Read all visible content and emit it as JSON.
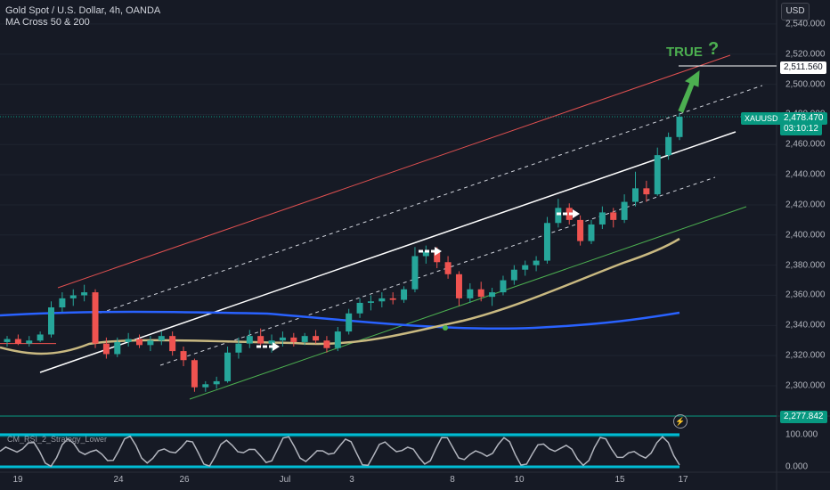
{
  "header": {
    "title": "Gold Spot / U.S. Dollar, 4h, OANDA",
    "indicator": "MA Cross 50 & 200",
    "currency_button": "USD"
  },
  "annotation": {
    "text": "TRUE",
    "mark": "?",
    "color": "#4caf50"
  },
  "price_axis": {
    "labels": [
      "2,540.000",
      "2,520.000",
      "2,500.000",
      "2,480.000",
      "2,460.000",
      "2,440.000",
      "2,420.000",
      "2,400.000",
      "2,380.000",
      "2,360.000",
      "2,340.000",
      "2,320.000",
      "2,300.000"
    ],
    "target_tag": "2,511.560",
    "symbol_tag": "XAUUSD",
    "last_price_tag": "2,478.470",
    "countdown_tag": "03:10:12",
    "low_tag": "2,277.842",
    "osc_labels": [
      "100.000",
      "0.000"
    ]
  },
  "oscillator": {
    "label": "CM_RSI_2_Strategy_Lower"
  },
  "alert_icon": "lightning-icon",
  "date_axis": [
    "19",
    "24",
    "26",
    "Jul",
    "3",
    "8",
    "10",
    "15",
    "17"
  ],
  "colors": {
    "bg": "#161a25",
    "up": "#26a69a",
    "down": "#ef5350",
    "ma50": "#c9b981",
    "ma200": "#2962ff",
    "tag_green": "#089981",
    "annotation": "#4caf50",
    "osc_line": "#b2b5be",
    "osc_band": "#00bcd4"
  },
  "chart_data": {
    "type": "candlestick",
    "series_name": "XAUUSD",
    "y_range": [
      2285,
      2545
    ],
    "last_price": 2478.47,
    "target_price": 2511.56,
    "low_marker": 2277.842,
    "ma_labels": [
      "MA Cross 50 & 200"
    ],
    "candles": [
      {
        "c": "19",
        "o": 2329,
        "h": 2333,
        "l": 2326,
        "cl": 2331
      },
      {
        "c": "19",
        "o": 2331,
        "h": 2334,
        "l": 2327,
        "cl": 2328
      },
      {
        "c": "19",
        "o": 2328,
        "h": 2333,
        "l": 2326,
        "cl": 2330
      },
      {
        "c": "20",
        "o": 2330,
        "h": 2336,
        "l": 2329,
        "cl": 2334
      },
      {
        "c": "20",
        "o": 2334,
        "h": 2356,
        "l": 2332,
        "cl": 2352
      },
      {
        "c": "20",
        "o": 2352,
        "h": 2362,
        "l": 2349,
        "cl": 2358
      },
      {
        "c": "21",
        "o": 2358,
        "h": 2364,
        "l": 2353,
        "cl": 2360
      },
      {
        "c": "21",
        "o": 2360,
        "h": 2367,
        "l": 2356,
        "cl": 2362
      },
      {
        "c": "21",
        "o": 2362,
        "h": 2364,
        "l": 2325,
        "cl": 2328
      },
      {
        "c": "24",
        "o": 2328,
        "h": 2332,
        "l": 2318,
        "cl": 2321
      },
      {
        "c": "24",
        "o": 2321,
        "h": 2332,
        "l": 2319,
        "cl": 2329
      },
      {
        "c": "24",
        "o": 2329,
        "h": 2335,
        "l": 2326,
        "cl": 2331
      },
      {
        "c": "25",
        "o": 2331,
        "h": 2334,
        "l": 2325,
        "cl": 2327
      },
      {
        "c": "25",
        "o": 2327,
        "h": 2333,
        "l": 2323,
        "cl": 2330
      },
      {
        "c": "25",
        "o": 2330,
        "h": 2336,
        "l": 2327,
        "cl": 2333
      },
      {
        "c": "25",
        "o": 2333,
        "h": 2336,
        "l": 2320,
        "cl": 2323
      },
      {
        "c": "26",
        "o": 2323,
        "h": 2326,
        "l": 2313,
        "cl": 2317
      },
      {
        "c": "26",
        "o": 2317,
        "h": 2318,
        "l": 2296,
        "cl": 2299
      },
      {
        "c": "26",
        "o": 2299,
        "h": 2303,
        "l": 2296,
        "cl": 2301
      },
      {
        "c": "27",
        "o": 2301,
        "h": 2306,
        "l": 2298,
        "cl": 2303
      },
      {
        "c": "27",
        "o": 2303,
        "h": 2326,
        "l": 2302,
        "cl": 2322
      },
      {
        "c": "27",
        "o": 2322,
        "h": 2332,
        "l": 2318,
        "cl": 2328
      },
      {
        "c": "28",
        "o": 2328,
        "h": 2337,
        "l": 2325,
        "cl": 2333
      },
      {
        "c": "28",
        "o": 2333,
        "h": 2338,
        "l": 2326,
        "cl": 2328
      },
      {
        "c": "28",
        "o": 2328,
        "h": 2334,
        "l": 2322,
        "cl": 2330
      },
      {
        "c": "Jul",
        "o": 2330,
        "h": 2336,
        "l": 2326,
        "cl": 2332
      },
      {
        "c": "Jul",
        "o": 2332,
        "h": 2335,
        "l": 2326,
        "cl": 2329
      },
      {
        "c": "Jul",
        "o": 2329,
        "h": 2335,
        "l": 2327,
        "cl": 2333
      },
      {
        "c": "2",
        "o": 2333,
        "h": 2337,
        "l": 2328,
        "cl": 2330
      },
      {
        "c": "2",
        "o": 2330,
        "h": 2333,
        "l": 2322,
        "cl": 2325
      },
      {
        "c": "2",
        "o": 2325,
        "h": 2339,
        "l": 2323,
        "cl": 2336
      },
      {
        "c": "3",
        "o": 2336,
        "h": 2351,
        "l": 2334,
        "cl": 2348
      },
      {
        "c": "3",
        "o": 2348,
        "h": 2358,
        "l": 2345,
        "cl": 2355
      },
      {
        "c": "3",
        "o": 2355,
        "h": 2360,
        "l": 2350,
        "cl": 2356
      },
      {
        "c": "4",
        "o": 2356,
        "h": 2362,
        "l": 2352,
        "cl": 2358
      },
      {
        "c": "4",
        "o": 2358,
        "h": 2362,
        "l": 2354,
        "cl": 2357
      },
      {
        "c": "4",
        "o": 2357,
        "h": 2366,
        "l": 2355,
        "cl": 2364
      },
      {
        "c": "5",
        "o": 2364,
        "h": 2392,
        "l": 2362,
        "cl": 2386
      },
      {
        "c": "5",
        "o": 2386,
        "h": 2393,
        "l": 2381,
        "cl": 2389
      },
      {
        "c": "5",
        "o": 2389,
        "h": 2392,
        "l": 2378,
        "cl": 2382
      },
      {
        "c": "8",
        "o": 2382,
        "h": 2386,
        "l": 2371,
        "cl": 2374
      },
      {
        "c": "8",
        "o": 2374,
        "h": 2376,
        "l": 2353,
        "cl": 2358
      },
      {
        "c": "8",
        "o": 2358,
        "h": 2368,
        "l": 2355,
        "cl": 2364
      },
      {
        "c": "9",
        "o": 2364,
        "h": 2369,
        "l": 2356,
        "cl": 2359
      },
      {
        "c": "9",
        "o": 2359,
        "h": 2365,
        "l": 2353,
        "cl": 2362
      },
      {
        "c": "9",
        "o": 2362,
        "h": 2373,
        "l": 2360,
        "cl": 2370
      },
      {
        "c": "10",
        "o": 2370,
        "h": 2380,
        "l": 2367,
        "cl": 2377
      },
      {
        "c": "10",
        "o": 2377,
        "h": 2383,
        "l": 2373,
        "cl": 2380
      },
      {
        "c": "10",
        "o": 2380,
        "h": 2386,
        "l": 2376,
        "cl": 2383
      },
      {
        "c": "11",
        "o": 2383,
        "h": 2412,
        "l": 2381,
        "cl": 2408
      },
      {
        "c": "11",
        "o": 2408,
        "h": 2424,
        "l": 2405,
        "cl": 2418
      },
      {
        "c": "11",
        "o": 2418,
        "h": 2421,
        "l": 2407,
        "cl": 2410
      },
      {
        "c": "12",
        "o": 2410,
        "h": 2413,
        "l": 2393,
        "cl": 2396
      },
      {
        "c": "12",
        "o": 2396,
        "h": 2410,
        "l": 2394,
        "cl": 2407
      },
      {
        "c": "12",
        "o": 2407,
        "h": 2419,
        "l": 2404,
        "cl": 2415
      },
      {
        "c": "15",
        "o": 2415,
        "h": 2418,
        "l": 2405,
        "cl": 2410
      },
      {
        "c": "15",
        "o": 2410,
        "h": 2427,
        "l": 2408,
        "cl": 2422
      },
      {
        "c": "15",
        "o": 2422,
        "h": 2442,
        "l": 2419,
        "cl": 2431
      },
      {
        "c": "16",
        "o": 2431,
        "h": 2436,
        "l": 2422,
        "cl": 2427
      },
      {
        "c": "16",
        "o": 2427,
        "h": 2458,
        "l": 2426,
        "cl": 2453
      },
      {
        "c": "16",
        "o": 2453,
        "h": 2468,
        "l": 2450,
        "cl": 2465
      },
      {
        "c": "17",
        "o": 2465,
        "h": 2481,
        "l": 2463,
        "cl": 2478.47
      }
    ]
  }
}
